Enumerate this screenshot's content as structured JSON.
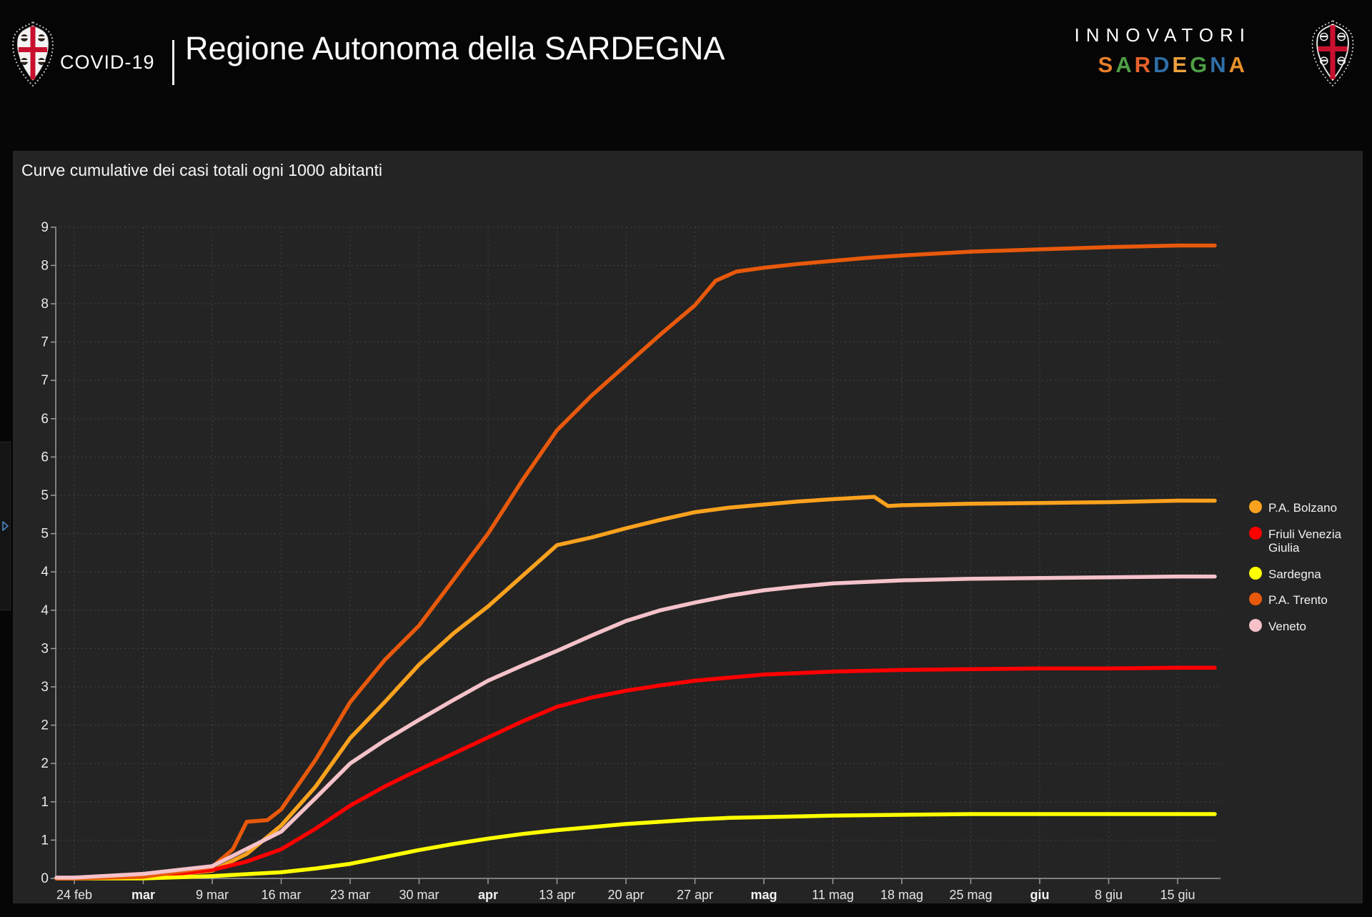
{
  "header": {
    "covid_label": "COVID-19",
    "org_title": "Regione Autonoma della SARDEGNA",
    "brand_line1": "INNOVATORI",
    "brand_line2_letters": [
      {
        "char": "S",
        "color": "#e87f2b"
      },
      {
        "char": "A",
        "color": "#4f9e45"
      },
      {
        "char": "R",
        "color": "#e8632b"
      },
      {
        "char": "D",
        "color": "#2f6fa8"
      },
      {
        "char": "E",
        "color": "#eda13d"
      },
      {
        "char": "G",
        "color": "#4f9e45"
      },
      {
        "char": "N",
        "color": "#2f6fa8"
      },
      {
        "char": "A",
        "color": "#e8902b"
      }
    ]
  },
  "panel": {
    "title": "Curve cumulative dei casi totali ogni 1000 abitanti"
  },
  "chart_data": {
    "type": "line",
    "title": "Curve cumulative dei casi totali ogni 1000 abitanti",
    "x_unit": "weeks since 24 feb 2020",
    "x_tick_labels": [
      {
        "label": "24 feb",
        "bold": false
      },
      {
        "label": "mar",
        "bold": true
      },
      {
        "label": "9 mar",
        "bold": false
      },
      {
        "label": "16 mar",
        "bold": false
      },
      {
        "label": "23 mar",
        "bold": false
      },
      {
        "label": "30 mar",
        "bold": false
      },
      {
        "label": "apr",
        "bold": true
      },
      {
        "label": "13 apr",
        "bold": false
      },
      {
        "label": "20 apr",
        "bold": false
      },
      {
        "label": "27 apr",
        "bold": false
      },
      {
        "label": "mag",
        "bold": true
      },
      {
        "label": "11 mag",
        "bold": false
      },
      {
        "label": "18 mag",
        "bold": false
      },
      {
        "label": "25 mag",
        "bold": false
      },
      {
        "label": "giu",
        "bold": true
      },
      {
        "label": "8 giu",
        "bold": false
      },
      {
        "label": "15 giu",
        "bold": false
      }
    ],
    "y_axis": {
      "min": 0,
      "max": 8.5,
      "step": 0.5,
      "tick_labels_bottom_to_top": [
        "0",
        "1",
        "1",
        "2",
        "2",
        "3",
        "3",
        "4",
        "4",
        "5",
        "5",
        "6",
        "6",
        "7",
        "7",
        "8",
        "8",
        "9"
      ]
    },
    "grid": true,
    "legend_position": "right",
    "series": [
      {
        "name": "P.A. Bolzano",
        "color": "#faa21e",
        "points": [
          [
            0,
            0
          ],
          [
            1,
            0.01
          ],
          [
            2,
            0.1
          ],
          [
            2.5,
            0.32
          ],
          [
            3,
            0.69
          ],
          [
            3.5,
            1.2
          ],
          [
            4,
            1.83
          ],
          [
            4.5,
            2.3
          ],
          [
            5,
            2.79
          ],
          [
            5.5,
            3.2
          ],
          [
            6,
            3.55
          ],
          [
            6.5,
            3.95
          ],
          [
            7,
            4.35
          ],
          [
            7.5,
            4.45
          ],
          [
            8,
            4.57
          ],
          [
            8.5,
            4.68
          ],
          [
            9,
            4.78
          ],
          [
            9.5,
            4.84
          ],
          [
            10,
            4.88
          ],
          [
            10.5,
            4.92
          ],
          [
            11,
            4.95
          ],
          [
            11.6,
            4.98
          ],
          [
            11.8,
            4.86
          ],
          [
            12,
            4.87
          ],
          [
            13,
            4.89
          ],
          [
            14,
            4.9
          ],
          [
            15,
            4.91
          ],
          [
            16,
            4.93
          ]
        ]
      },
      {
        "name": "Friuli Venezia Giulia",
        "color": "#ff0000",
        "points": [
          [
            0,
            0
          ],
          [
            1,
            0.01
          ],
          [
            2,
            0.11
          ],
          [
            2.5,
            0.22
          ],
          [
            3,
            0.38
          ],
          [
            3.5,
            0.65
          ],
          [
            4,
            0.95
          ],
          [
            4.5,
            1.2
          ],
          [
            5,
            1.42
          ],
          [
            5.5,
            1.63
          ],
          [
            6,
            1.84
          ],
          [
            6.5,
            2.05
          ],
          [
            7,
            2.24
          ],
          [
            7.5,
            2.36
          ],
          [
            8,
            2.45
          ],
          [
            8.5,
            2.52
          ],
          [
            9,
            2.58
          ],
          [
            9.5,
            2.62
          ],
          [
            10,
            2.66
          ],
          [
            10.5,
            2.68
          ],
          [
            11,
            2.7
          ],
          [
            11.5,
            2.71
          ],
          [
            12,
            2.72
          ],
          [
            13,
            2.73
          ],
          [
            14,
            2.74
          ],
          [
            15,
            2.74
          ],
          [
            16,
            2.75
          ]
        ]
      },
      {
        "name": "Sardegna",
        "color": "#ffff00",
        "points": [
          [
            0,
            0
          ],
          [
            1,
            0
          ],
          [
            2,
            0.03
          ],
          [
            3,
            0.08
          ],
          [
            3.5,
            0.13
          ],
          [
            4,
            0.19
          ],
          [
            4.5,
            0.28
          ],
          [
            5,
            0.37
          ],
          [
            5.5,
            0.45
          ],
          [
            6,
            0.52
          ],
          [
            6.5,
            0.58
          ],
          [
            7,
            0.63
          ],
          [
            7.5,
            0.67
          ],
          [
            8,
            0.71
          ],
          [
            8.5,
            0.74
          ],
          [
            9,
            0.77
          ],
          [
            9.5,
            0.79
          ],
          [
            10,
            0.8
          ],
          [
            10.5,
            0.81
          ],
          [
            11,
            0.82
          ],
          [
            12,
            0.83
          ],
          [
            13,
            0.84
          ],
          [
            14,
            0.84
          ],
          [
            15,
            0.84
          ],
          [
            16,
            0.84
          ]
        ]
      },
      {
        "name": "P.A. Trento",
        "color": "#e8590c",
        "points": [
          [
            0,
            0
          ],
          [
            1,
            0.02
          ],
          [
            2,
            0.15
          ],
          [
            2.3,
            0.38
          ],
          [
            2.5,
            0.74
          ],
          [
            2.8,
            0.76
          ],
          [
            3,
            0.9
          ],
          [
            3.5,
            1.55
          ],
          [
            4,
            2.3
          ],
          [
            4.5,
            2.85
          ],
          [
            5,
            3.3
          ],
          [
            5.5,
            3.9
          ],
          [
            6,
            4.5
          ],
          [
            6.5,
            5.2
          ],
          [
            7,
            5.85
          ],
          [
            7.5,
            6.3
          ],
          [
            8,
            6.7
          ],
          [
            8.5,
            7.1
          ],
          [
            9,
            7.48
          ],
          [
            9.3,
            7.8
          ],
          [
            9.6,
            7.92
          ],
          [
            10,
            7.97
          ],
          [
            10.5,
            8.02
          ],
          [
            11,
            8.06
          ],
          [
            11.5,
            8.1
          ],
          [
            12,
            8.13
          ],
          [
            13,
            8.18
          ],
          [
            14,
            8.21
          ],
          [
            15,
            8.24
          ],
          [
            16,
            8.26
          ]
        ]
      },
      {
        "name": "Veneto",
        "color": "#f5c2ca",
        "points": [
          [
            0,
            0.01
          ],
          [
            1,
            0.06
          ],
          [
            2,
            0.16
          ],
          [
            3,
            0.61
          ],
          [
            3.5,
            1.05
          ],
          [
            4,
            1.5
          ],
          [
            4.5,
            1.8
          ],
          [
            5,
            2.07
          ],
          [
            5.5,
            2.33
          ],
          [
            6,
            2.58
          ],
          [
            6.5,
            2.78
          ],
          [
            7,
            2.97
          ],
          [
            7.5,
            3.17
          ],
          [
            8,
            3.36
          ],
          [
            8.5,
            3.5
          ],
          [
            9,
            3.6
          ],
          [
            9.5,
            3.69
          ],
          [
            10,
            3.76
          ],
          [
            10.5,
            3.81
          ],
          [
            11,
            3.85
          ],
          [
            11.5,
            3.87
          ],
          [
            12,
            3.89
          ],
          [
            13,
            3.91
          ],
          [
            14,
            3.92
          ],
          [
            15,
            3.93
          ],
          [
            16,
            3.94
          ]
        ]
      }
    ]
  },
  "colors": {
    "page_bg": "#060606",
    "panel_bg": "#242424",
    "grid": "#434343",
    "axis": "#9d9d9d",
    "flag_cross_red": "#c8102e",
    "sidebar_arrow_blue": "#4a86c2"
  },
  "sidebar_toggle": {
    "icon": "expand-right-arrow"
  }
}
